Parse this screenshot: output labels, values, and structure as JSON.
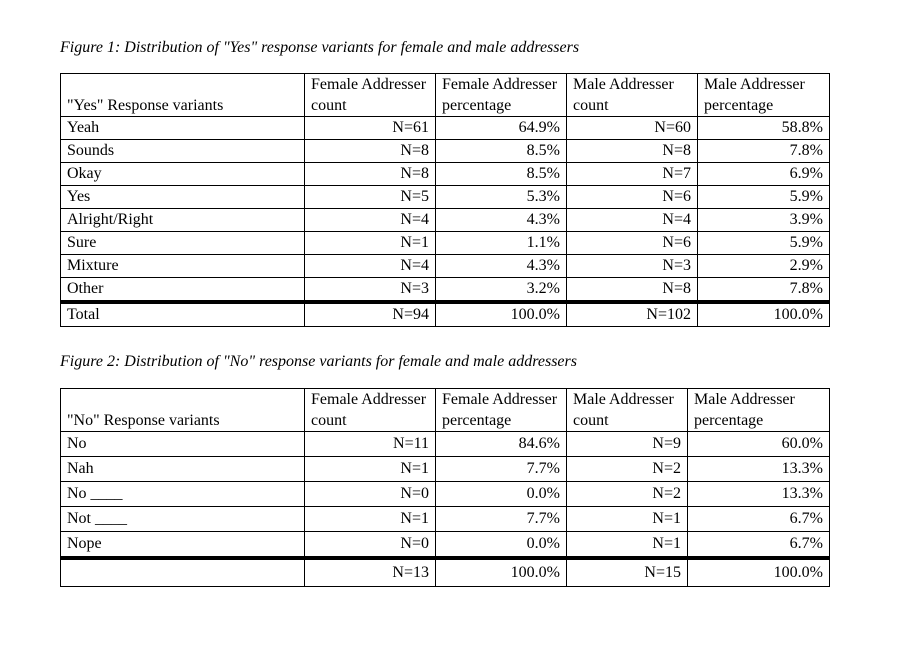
{
  "figure1": {
    "caption": "Figure 1: Distribution of \"Yes\" response variants for female and male addressers",
    "headers": [
      "\"Yes\" Response variants",
      "Female Addresser count",
      "Female Addresser percentage",
      "Male Addresser count",
      "Male Addresser percentage"
    ],
    "rows": [
      {
        "variant": "Yeah",
        "f_count": "N=61",
        "f_pct": "64.9%",
        "m_count": "N=60",
        "m_pct": "58.8%"
      },
      {
        "variant": "Sounds",
        "f_count": "N=8",
        "f_pct": "8.5%",
        "m_count": "N=8",
        "m_pct": "7.8%"
      },
      {
        "variant": "Okay",
        "f_count": "N=8",
        "f_pct": "8.5%",
        "m_count": "N=7",
        "m_pct": "6.9%"
      },
      {
        "variant": "Yes",
        "f_count": "N=5",
        "f_pct": "5.3%",
        "m_count": "N=6",
        "m_pct": "5.9%"
      },
      {
        "variant": "Alright/Right",
        "f_count": "N=4",
        "f_pct": "4.3%",
        "m_count": "N=4",
        "m_pct": "3.9%"
      },
      {
        "variant": "Sure",
        "f_count": "N=1",
        "f_pct": "1.1%",
        "m_count": "N=6",
        "m_pct": "5.9%"
      },
      {
        "variant": "Mixture",
        "f_count": "N=4",
        "f_pct": "4.3%",
        "m_count": "N=3",
        "m_pct": "2.9%"
      },
      {
        "variant": "Other",
        "f_count": "N=3",
        "f_pct": "3.2%",
        "m_count": "N=8",
        "m_pct": "7.8%"
      }
    ],
    "total": {
      "variant": "Total",
      "f_count": "N=94",
      "f_pct": "100.0%",
      "m_count": "N=102",
      "m_pct": "100.0%"
    }
  },
  "figure2": {
    "caption": "Figure 2: Distribution of \"No\" response variants for female and male addressers",
    "headers": [
      "\"No\" Response variants",
      "Female Addresser count",
      "Female Addresser percentage",
      "Male Addresser count",
      "Male Addresser percentage"
    ],
    "rows": [
      {
        "variant": "No",
        "f_count": "N=11",
        "f_pct": "84.6%",
        "m_count": "N=9",
        "m_pct": "60.0%"
      },
      {
        "variant": "Nah",
        "f_count": "N=1",
        "f_pct": "7.7%",
        "m_count": "N=2",
        "m_pct": "13.3%"
      },
      {
        "variant": "No ____",
        "f_count": "N=0",
        "f_pct": "0.0%",
        "m_count": "N=2",
        "m_pct": "13.3%"
      },
      {
        "variant": "Not ____",
        "f_count": "N=1",
        "f_pct": "7.7%",
        "m_count": "N=1",
        "m_pct": "6.7%"
      },
      {
        "variant": "Nope",
        "f_count": "N=0",
        "f_pct": "0.0%",
        "m_count": "N=1",
        "m_pct": "6.7%"
      }
    ],
    "total": {
      "variant": "",
      "f_count": "N=13",
      "f_pct": "100.0%",
      "m_count": "N=15",
      "m_pct": "100.0%"
    }
  }
}
